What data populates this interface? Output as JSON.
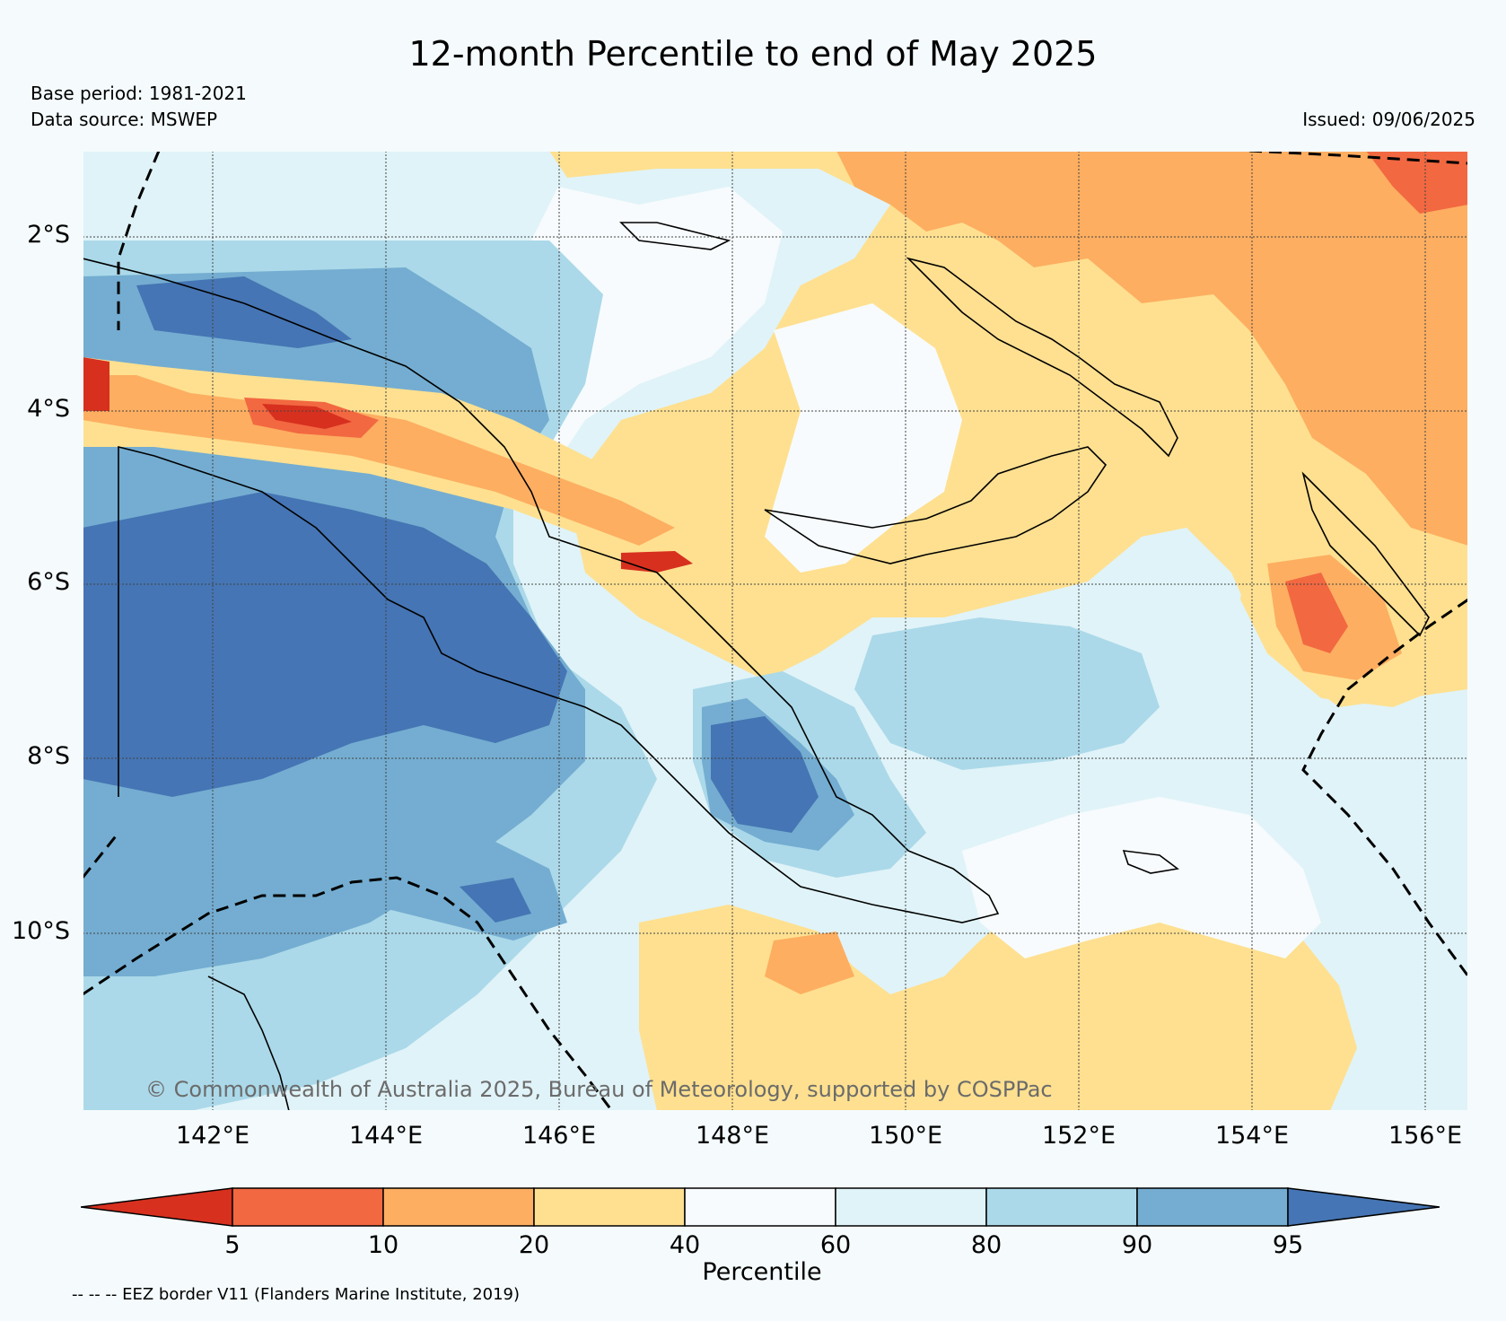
{
  "title": "12-month Percentile to end of May 2025",
  "base_period": "Base period: 1981-2021",
  "data_source": "Data source: MSWEP",
  "issued": "Issued: 09/06/2025",
  "copyright": "© Commonwealth of Australia 2025, Bureau of Meteorology, supported by COSPPac",
  "map": {
    "lat_labels": [
      "2°S",
      "4°S",
      "6°S",
      "8°S",
      "10°S"
    ],
    "lon_labels": [
      "142°E",
      "144°E",
      "146°E",
      "148°E",
      "150°E",
      "152°E",
      "154°E",
      "156°E"
    ],
    "extent": {
      "lon": [
        140.5,
        156.5
      ],
      "lat": [
        -0.8,
        -11.9
      ]
    }
  },
  "colorbar": {
    "label": "Percentile",
    "ticks": [
      "5",
      "10",
      "20",
      "40",
      "60",
      "80",
      "90",
      "95"
    ],
    "colors": [
      "#d7301f",
      "#f26841",
      "#fdae61",
      "#fee090",
      "#f7fbfd",
      "#e0f3f8",
      "#abd9e9",
      "#74add1",
      "#4575b4"
    ]
  },
  "eez_note": "-- -- -- EEZ border V11 (Flanders Marine Institute, 2019)"
}
